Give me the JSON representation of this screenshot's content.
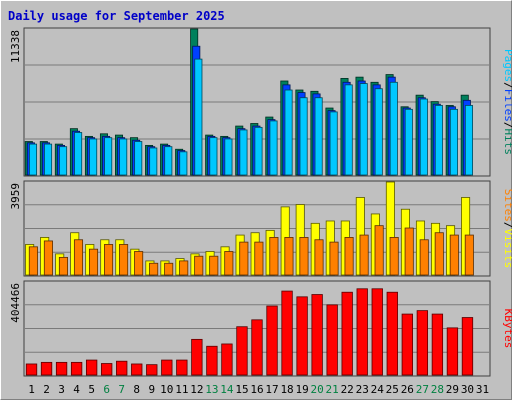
{
  "title": "Daily usage for September 2025",
  "colors": {
    "background": "#c0c0c0",
    "plot_bg": "#c0c0c0",
    "grid": "#7a7a7a",
    "title": "#0000c8",
    "hits": "#00805c",
    "files": "#0040ff",
    "pages": "#00c8ff",
    "visits": "#ffff00",
    "sites": "#ff8000",
    "kbytes": "#ff0000",
    "weekend_day": "#008040",
    "weekday": "#000000"
  },
  "chart_data": [
    {
      "type": "bar",
      "panel": "hits-files-pages",
      "legend": [
        "Pages",
        "Files",
        "Hits"
      ],
      "ymax_label": "11338",
      "ylim": [
        0,
        11338
      ],
      "x": [
        1,
        2,
        3,
        4,
        5,
        6,
        7,
        8,
        9,
        10,
        11,
        12,
        13,
        14,
        15,
        16,
        17,
        18,
        19,
        20,
        21,
        22,
        23,
        24,
        25,
        26,
        27,
        28,
        29,
        30,
        31
      ],
      "series": [
        {
          "name": "Hits",
          "values": [
            2600,
            2600,
            2400,
            3600,
            3000,
            3200,
            3100,
            2900,
            2300,
            2400,
            2000,
            11338,
            3100,
            3000,
            3800,
            4000,
            4500,
            7300,
            6600,
            6500,
            5200,
            7500,
            7600,
            7200,
            7800,
            5300,
            6200,
            5700,
            5400,
            6200,
            0
          ]
        },
        {
          "name": "Files",
          "values": [
            2500,
            2500,
            2300,
            3400,
            2900,
            3000,
            2900,
            2700,
            2200,
            2300,
            1900,
            10000,
            3000,
            2900,
            3600,
            3800,
            4300,
            7000,
            6400,
            6300,
            5000,
            7200,
            7300,
            7000,
            7600,
            5200,
            6000,
            5500,
            5300,
            5800,
            0
          ]
        },
        {
          "name": "Pages",
          "values": [
            2400,
            2400,
            2200,
            3300,
            2800,
            2900,
            2800,
            2600,
            2100,
            2200,
            1800,
            9000,
            2900,
            2800,
            3500,
            3700,
            4200,
            6600,
            6000,
            6000,
            4900,
            7000,
            7100,
            6700,
            7200,
            5100,
            5900,
            5400,
            5100,
            5400,
            0
          ]
        }
      ]
    },
    {
      "type": "bar",
      "panel": "visits-sites",
      "legend": [
        "Sites",
        "Visits"
      ],
      "ymax_label": "3959",
      "ylim": [
        0,
        3959
      ],
      "x": [
        1,
        2,
        3,
        4,
        5,
        6,
        7,
        8,
        9,
        10,
        11,
        12,
        13,
        14,
        15,
        16,
        17,
        18,
        19,
        20,
        21,
        22,
        23,
        24,
        25,
        26,
        27,
        28,
        29,
        30,
        31
      ],
      "series": [
        {
          "name": "Visits",
          "values": [
            1300,
            1600,
            900,
            1800,
            1300,
            1500,
            1500,
            1100,
            600,
            600,
            700,
            900,
            1000,
            1200,
            1700,
            1800,
            1900,
            2900,
            3000,
            2200,
            2300,
            2300,
            3300,
            2600,
            3959,
            2800,
            2300,
            2200,
            2100,
            3300,
            0
          ]
        },
        {
          "name": "Sites",
          "values": [
            1200,
            1450,
            750,
            1500,
            1100,
            1300,
            1300,
            1000,
            500,
            500,
            600,
            800,
            800,
            1000,
            1400,
            1400,
            1600,
            1600,
            1600,
            1500,
            1400,
            1600,
            1700,
            2100,
            1600,
            2000,
            1500,
            1800,
            1700,
            1700,
            0
          ]
        }
      ]
    },
    {
      "type": "bar",
      "panel": "kbytes",
      "legend": [
        "KBytes"
      ],
      "ymax_label": "404466",
      "ylim": [
        0,
        404466
      ],
      "x": [
        1,
        2,
        3,
        4,
        5,
        6,
        7,
        8,
        9,
        10,
        11,
        12,
        13,
        14,
        15,
        16,
        17,
        18,
        19,
        20,
        21,
        22,
        23,
        24,
        25,
        26,
        27,
        28,
        29,
        30,
        31
      ],
      "series": [
        {
          "name": "KBytes",
          "values": [
            48000,
            55000,
            55000,
            55000,
            65000,
            50000,
            60000,
            48000,
            45000,
            65000,
            65000,
            155000,
            125000,
            135000,
            210000,
            240000,
            300000,
            365000,
            340000,
            350000,
            305000,
            360000,
            375000,
            375000,
            360000,
            265000,
            280000,
            265000,
            205000,
            250000,
            0
          ]
        }
      ]
    }
  ],
  "day_labels": [
    "1",
    "2",
    "3",
    "4",
    "5",
    "6",
    "7",
    "8",
    "9",
    "10",
    "11",
    "12",
    "13",
    "14",
    "15",
    "16",
    "17",
    "18",
    "19",
    "20",
    "21",
    "22",
    "23",
    "24",
    "25",
    "26",
    "27",
    "28",
    "29",
    "30",
    "31"
  ],
  "weekend_days": [
    6,
    7,
    13,
    14,
    20,
    21,
    27,
    28
  ]
}
